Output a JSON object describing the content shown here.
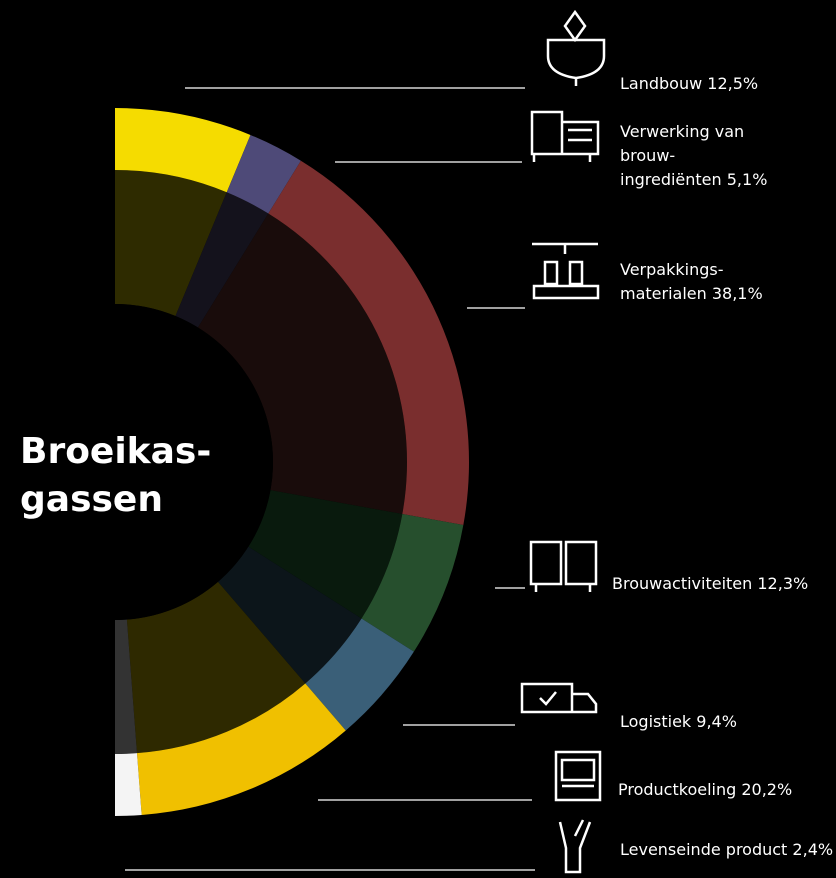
{
  "chart_data": {
    "type": "pie",
    "title": [
      "Broeikas-",
      "gassen"
    ],
    "categories": [
      "Landbouw",
      "Verwerking van\nbrouw-\ningrediënten",
      "Verpakkings-\nmaterialen",
      "Brouwactiviteiten",
      "Logistiek",
      "Productkoeling",
      "Levenseinde product"
    ],
    "values": [
      12.5,
      5.1,
      38.1,
      12.3,
      9.4,
      20.2,
      2.4
    ],
    "value_labels": [
      "12,5%",
      "5,1%",
      "38,1%",
      "12,3%",
      "9,4%",
      "20,2%",
      "2,4%"
    ],
    "colors": [
      "#f5dc00",
      "#4e4a78",
      "#7a2e2e",
      "#264f2d",
      "#3a5f78",
      "#f0c000",
      "#f4f4f4"
    ],
    "inner_colors": [
      "#2e2b00",
      "#14121c",
      "#190c0b",
      "#091a0d",
      "#0c151a",
      "#2e2900",
      "#333333"
    ]
  }
}
